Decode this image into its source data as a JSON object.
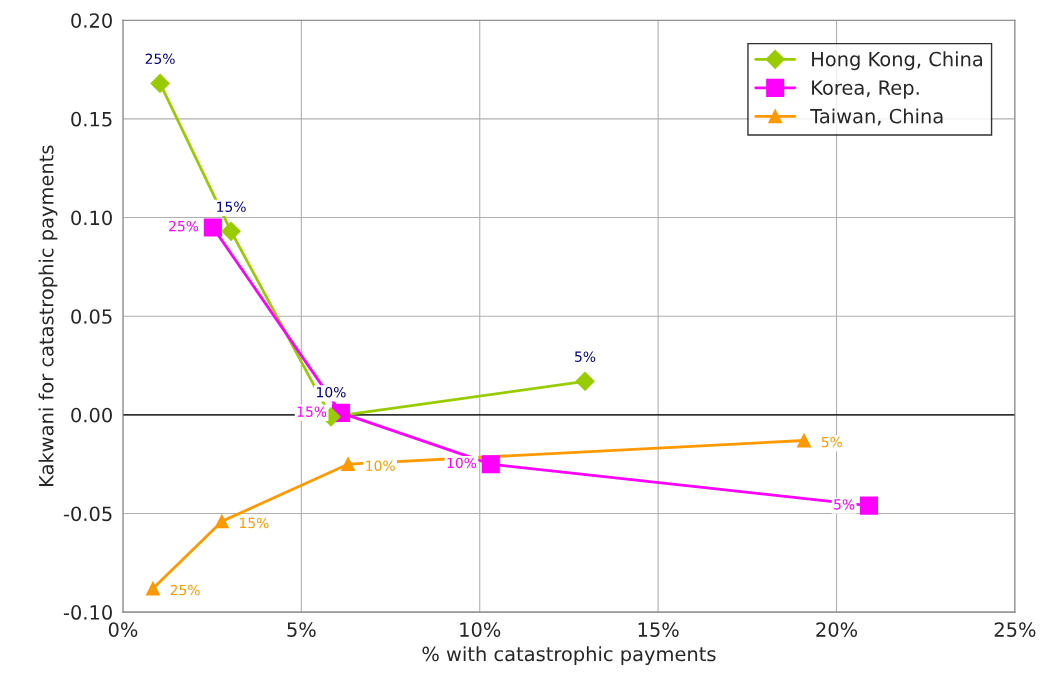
{
  "chart_data": {
    "type": "line",
    "xlabel": "% with catastrophic payments",
    "ylabel": "Kakwani for catastrophic payments",
    "xlim": [
      0,
      25
    ],
    "ylim": [
      -0.1,
      0.2
    ],
    "xticks": [
      {
        "value": 0,
        "label": "0%"
      },
      {
        "value": 5,
        "label": "5%"
      },
      {
        "value": 10,
        "label": "10%"
      },
      {
        "value": 15,
        "label": "15%"
      },
      {
        "value": 20,
        "label": "20%"
      },
      {
        "value": 25,
        "label": "25%"
      }
    ],
    "yticks": [
      {
        "value": -0.1,
        "label": "-0.10"
      },
      {
        "value": -0.05,
        "label": "-0.05"
      },
      {
        "value": 0,
        "label": "0.00"
      },
      {
        "value": 0.05,
        "label": "0.05"
      },
      {
        "value": 0.1,
        "label": "0.10"
      },
      {
        "value": 0.15,
        "label": "0.15"
      },
      {
        "value": 0.2,
        "label": "0.20"
      }
    ],
    "grid": true,
    "legend": "top right",
    "ref_lines": [
      {
        "axis": "y",
        "value": 0,
        "color": "#000000"
      }
    ],
    "series": [
      {
        "name": "Hong Kong, China",
        "color": "#99cc00",
        "marker": "diamond",
        "x": [
          1.04,
          3.03,
          5.83,
          12.95
        ],
        "values": [
          0.168,
          0.093,
          -0.001,
          0.017
        ]
      },
      {
        "name": "Korea, Rep.",
        "color": "#ff00ff",
        "marker": "square",
        "x": [
          2.52,
          6.11,
          10.31,
          20.91
        ],
        "values": [
          0.095,
          0.001,
          -0.025,
          -0.046
        ]
      },
      {
        "name": "Taiwan, China",
        "color": "#ff9900",
        "marker": "triangle",
        "x": [
          0.84,
          2.77,
          6.31,
          19.09
        ],
        "values": [
          -0.088,
          -0.054,
          -0.025,
          -0.013
        ]
      }
    ],
    "annotations": [
      {
        "text": "25%",
        "x": 1.04,
        "y": 0.168
      },
      {
        "text": "15%",
        "x": 3.03,
        "y": 0.093
      },
      {
        "text": "10%",
        "x": 5.83,
        "y": -0.001
      },
      {
        "text": "5%",
        "x": 12.95,
        "y": 0.017
      },
      {
        "text": "25%",
        "x": 2.52,
        "y": 0.095
      },
      {
        "text": "15%",
        "x": 6.11,
        "y": 0.001
      },
      {
        "text": "10%",
        "x": 10.31,
        "y": -0.025
      },
      {
        "text": "5%",
        "x": 20.91,
        "y": -0.046
      },
      {
        "text": "25%",
        "x": 0.84,
        "y": -0.088
      },
      {
        "text": "15%",
        "x": 2.77,
        "y": -0.054
      },
      {
        "text": "10%",
        "x": 6.31,
        "y": -0.025
      },
      {
        "text": "5%",
        "x": 19.09,
        "y": -0.013
      }
    ]
  }
}
